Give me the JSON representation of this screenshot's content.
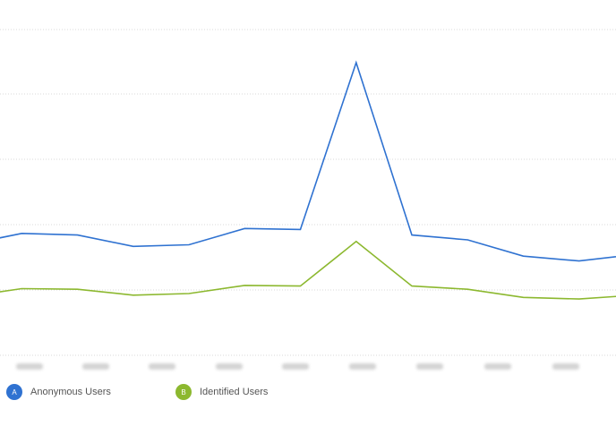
{
  "chart_data": {
    "type": "line",
    "title": "",
    "xlabel": "",
    "ylabel": "",
    "ylim": [
      0,
      90
    ],
    "grid": true,
    "legend_placement": "bottom-left",
    "series": [
      {
        "name": "Anonymous Users",
        "badge": "A",
        "color": "#2f72d1",
        "values": [
          34,
          37.5,
          37,
          33.5,
          34,
          39,
          38.7,
          90,
          37,
          35.5,
          30.5,
          29,
          31
        ]
      },
      {
        "name": "Identified Users",
        "badge": "B",
        "color": "#8cb82f",
        "values": [
          18,
          20.5,
          20.3,
          18.5,
          19,
          21.5,
          21.3,
          35,
          21.3,
          20.3,
          17.8,
          17.3,
          18.5
        ]
      }
    ]
  }
}
